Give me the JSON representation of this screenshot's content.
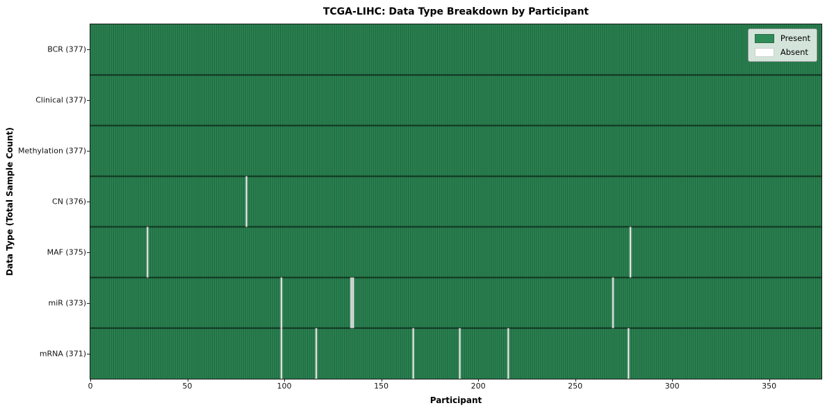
{
  "chart_data": {
    "type": "heatmap",
    "title": "TCGA-LIHC: Data Type Breakdown by Participant",
    "xlabel": "Participant",
    "ylabel": "Data Type (Total Sample Count)",
    "n_participants": 377,
    "x_ticks": [
      0,
      50,
      100,
      150,
      200,
      250,
      300,
      350
    ],
    "rows": [
      {
        "label": "BCR (377)",
        "data_type": "BCR",
        "present_count": 377,
        "absent_participants": []
      },
      {
        "label": "Clinical (377)",
        "data_type": "Clinical",
        "present_count": 377,
        "absent_participants": []
      },
      {
        "label": "Methylation (377)",
        "data_type": "Methylation",
        "present_count": 377,
        "absent_participants": []
      },
      {
        "label": "CN (376)",
        "data_type": "CN",
        "present_count": 376,
        "absent_participants": [
          80
        ]
      },
      {
        "label": "MAF (375)",
        "data_type": "MAF",
        "present_count": 375,
        "absent_participants": [
          29,
          278
        ]
      },
      {
        "label": "miR (373)",
        "data_type": "miR",
        "present_count": 373,
        "absent_participants": [
          98,
          134,
          135,
          269
        ]
      },
      {
        "label": "mRNA (371)",
        "data_type": "mRNA",
        "present_count": 371,
        "absent_participants": [
          98,
          116,
          166,
          190,
          215,
          277
        ]
      }
    ],
    "legend": [
      {
        "label": "Present",
        "color": "#2e8b57"
      },
      {
        "label": "Absent",
        "color": "#ffffff"
      }
    ],
    "colors": {
      "present": "#2e8b57",
      "absent": "#ffffff",
      "cell_edge": "rgba(10,42,24,0.5)",
      "row_divider": "#10291a",
      "axis": "#1a1a1a"
    },
    "layout": {
      "legend_position": "upper right",
      "grid": false,
      "x_range": [
        0,
        377
      ],
      "orientation": "rows = data types, columns = participants"
    }
  }
}
